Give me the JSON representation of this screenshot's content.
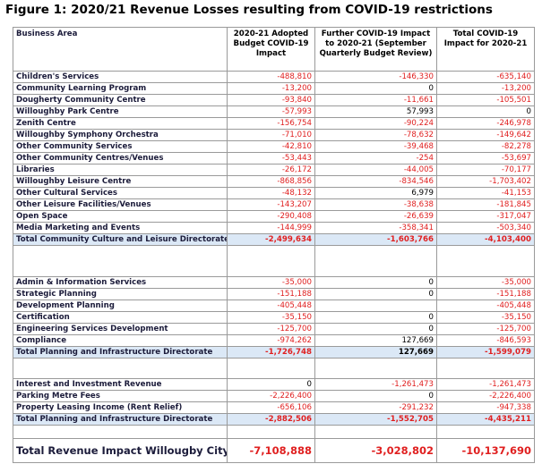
{
  "header": {
    "title": "Figure 1: 2020/21 Revenue Losses resulting from COVID-19 restrictions"
  },
  "table": {
    "columns": [
      "Business Area",
      "2020-21 Adopted Budget COVID-19 Impact",
      "Further COVID-19 Impact to 2020-21 (September Quarterly Budget Review)",
      "Total COVID-19 Impact for 2020-21"
    ],
    "sections": [
      {
        "rows": [
          [
            "Children's Services",
            "-488,810",
            "-146,330",
            "-635,140"
          ],
          [
            "Community Learning Program",
            "-13,200",
            "0",
            "-13,200"
          ],
          [
            "Dougherty Community Centre",
            "-93,840",
            "-11,661",
            "-105,501"
          ],
          [
            "Willoughby Park Centre",
            "-57,993",
            "57,993",
            "0"
          ],
          [
            "Zenith Centre",
            "-156,754",
            "-90,224",
            "-246,978"
          ],
          [
            "Willoughby Symphony Orchestra",
            "-71,010",
            "-78,632",
            "-149,642"
          ],
          [
            "Other Community Services",
            "-42,810",
            "-39,468",
            "-82,278"
          ],
          [
            "Other Community Centres/Venues",
            "-53,443",
            "-254",
            "-53,697"
          ],
          [
            "Libraries",
            "-26,172",
            "-44,005",
            "-70,177"
          ],
          [
            "Willoughby Leisure Centre",
            "-868,856",
            "-834,546",
            "-1,703,402"
          ],
          [
            "Other Cultural Services",
            "-48,132",
            "6,979",
            "-41,153"
          ],
          [
            "Other Leisure Facilities/Venues",
            "-143,207",
            "-38,638",
            "-181,845"
          ],
          [
            "Open Space",
            "-290,408",
            "-26,639",
            "-317,047"
          ],
          [
            "Media Marketing and Events",
            "-144,999",
            "-358,341",
            "-503,340"
          ]
        ],
        "total": [
          "Total Community Culture and Leisure Directorate",
          "-2,499,634",
          "-1,603,766",
          "-4,103,400"
        ]
      },
      {
        "rows": [
          [
            "Admin & Information Services",
            "-35,000",
            "0",
            "-35,000"
          ],
          [
            "Strategic Planning",
            "-151,188",
            "0",
            "-151,188"
          ],
          [
            "Development Planning",
            "-405,448",
            null,
            "-405,448"
          ],
          [
            "Certification",
            "-35,150",
            "0",
            "-35,150"
          ],
          [
            "Engineering Services Development",
            "-125,700",
            "0",
            "-125,700"
          ],
          [
            "Compliance",
            "-974,262",
            "127,669",
            "-846,593"
          ]
        ],
        "total": [
          "Total Planning and Infrastructure Directorate",
          "-1,726,748",
          "127,669",
          "-1,599,079"
        ]
      },
      {
        "rows": [
          [
            "Interest and Investment Revenue",
            "0",
            "-1,261,473",
            "-1,261,473"
          ],
          [
            "Parking Metre Fees",
            "-2,226,400",
            "0",
            "-2,226,400"
          ],
          [
            "Property Leasing Income (Rent Relief)",
            "-656,106",
            "-291,232",
            "-947,338"
          ]
        ],
        "total": [
          "Total Planning and Infrastructure Directorate",
          "-2,882,506",
          "-1,552,705",
          "-4,435,211"
        ]
      }
    ],
    "grand_total": [
      "Total Revenue Impact Willougby City",
      "-7,108,888",
      "-3,028,802",
      "-10,137,690"
    ]
  }
}
